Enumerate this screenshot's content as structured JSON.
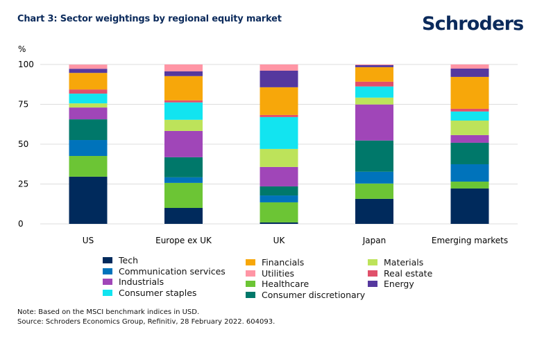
{
  "header": {
    "title": "Chart 3: Sector weightings by regional equity market",
    "logo": "Schroders"
  },
  "notes": {
    "note": "Note: Based on the MSCI benchmark indices in USD.",
    "source": "Source: Schroders Economics Group, Refinitiv, 28 February 2022. 604093."
  },
  "chart_data": {
    "type": "bar",
    "stacked": true,
    "title": "Chart 3: Sector weightings by regional equity market",
    "xlabel": "",
    "ylabel": "%",
    "ylim": [
      0,
      100
    ],
    "yticks": [
      0,
      25,
      50,
      75,
      100
    ],
    "grid": true,
    "legend_position": "bottom",
    "categories": [
      "US",
      "Europe ex UK",
      "UK",
      "Japan",
      "Emerging markets"
    ],
    "series": [
      {
        "name": "Tech",
        "color": "#002a5c",
        "values": [
          29.6,
          10.0,
          0.9,
          15.7,
          22.2
        ]
      },
      {
        "name": "Healthcare",
        "color": "#6cc535",
        "values": [
          13.0,
          15.7,
          12.6,
          9.6,
          4.3
        ]
      },
      {
        "name": "Communication services",
        "color": "#0073bb",
        "values": [
          10.0,
          3.5,
          4.3,
          7.4,
          10.9
        ]
      },
      {
        "name": "Consumer discretionary",
        "color": "#00786a",
        "values": [
          13.0,
          12.6,
          5.7,
          19.6,
          13.5
        ]
      },
      {
        "name": "Industrials",
        "color": "#a046b8",
        "values": [
          7.4,
          16.5,
          12.2,
          22.6,
          4.8
        ]
      },
      {
        "name": "Materials",
        "color": "#bde35a",
        "values": [
          2.6,
          7.0,
          11.3,
          4.3,
          9.1
        ]
      },
      {
        "name": "Consumer staples",
        "color": "#12e4f0",
        "values": [
          6.1,
          10.9,
          20.0,
          7.0,
          5.7
        ]
      },
      {
        "name": "Real estate",
        "color": "#e0506a",
        "values": [
          2.6,
          1.3,
          1.3,
          3.0,
          1.7
        ]
      },
      {
        "name": "Financials",
        "color": "#f7a70a",
        "values": [
          10.4,
          15.2,
          17.4,
          9.1,
          20.0
        ]
      },
      {
        "name": "Energy",
        "color": "#55389e",
        "values": [
          2.6,
          3.0,
          10.4,
          1.3,
          5.2
        ]
      },
      {
        "name": "Utilities",
        "color": "#ff95a5",
        "values": [
          2.6,
          4.3,
          3.9,
          0.4,
          2.6
        ]
      }
    ],
    "legend_order": [
      "Tech",
      "Communication services",
      "Industrials",
      "Consumer staples",
      "Financials",
      "Utilities",
      "Healthcare",
      "Consumer discretionary",
      "Materials",
      "Real estate",
      "Energy"
    ]
  }
}
